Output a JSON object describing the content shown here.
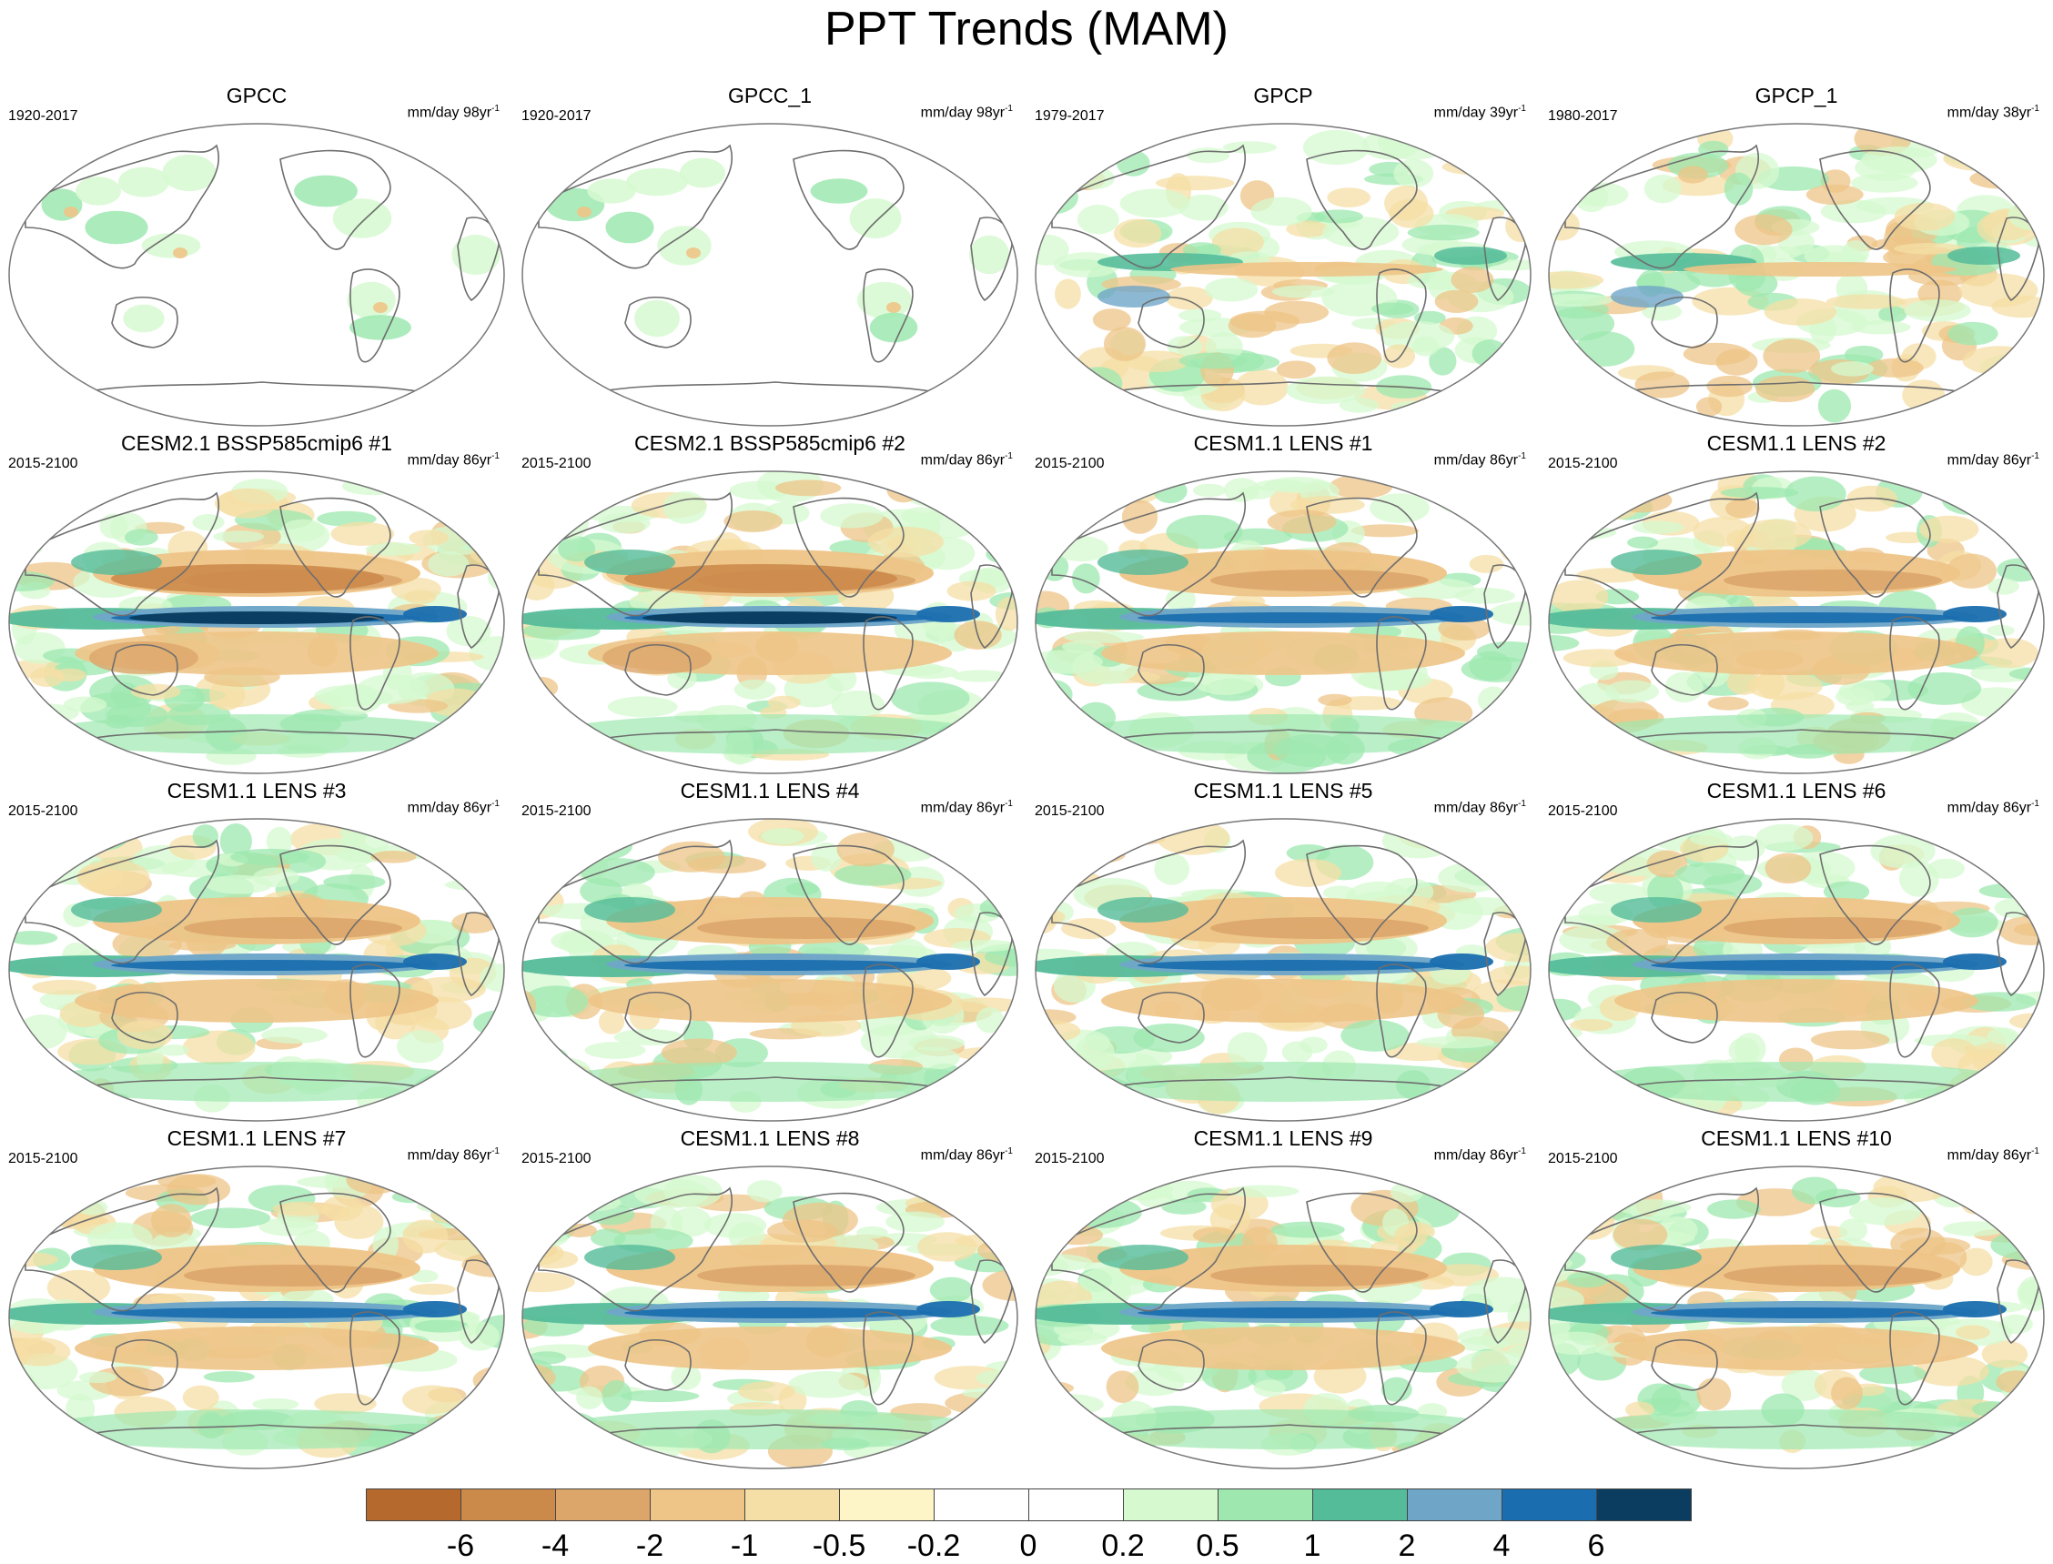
{
  "figure": {
    "title": "PPT Trends (MAM)"
  },
  "panels": [
    {
      "title": "GPCC",
      "period": "1920-2017",
      "units": "mm/day 98yr",
      "units_exp": "-1",
      "pattern": "land"
    },
    {
      "title": "GPCC_1",
      "period": "1920-2017",
      "units": "mm/day 98yr",
      "units_exp": "-1",
      "pattern": "land"
    },
    {
      "title": "GPCP",
      "period": "1979-2017",
      "units": "mm/day 39yr",
      "units_exp": "-1",
      "pattern": "obs"
    },
    {
      "title": "GPCP_1",
      "period": "1980-2017",
      "units": "mm/day 38yr",
      "units_exp": "-1",
      "pattern": "obs"
    },
    {
      "title": "CESM2.1 BSSP585cmip6 #1",
      "period": "2015-2100",
      "units": "mm/day 86yr",
      "units_exp": "-1",
      "pattern": "strong"
    },
    {
      "title": "CESM2.1 BSSP585cmip6 #2",
      "period": "2015-2100",
      "units": "mm/day 86yr",
      "units_exp": "-1",
      "pattern": "strong"
    },
    {
      "title": "CESM1.1 LENS #1",
      "period": "2015-2100",
      "units": "mm/day 86yr",
      "units_exp": "-1",
      "pattern": "model"
    },
    {
      "title": "CESM1.1 LENS #2",
      "period": "2015-2100",
      "units": "mm/day 86yr",
      "units_exp": "-1",
      "pattern": "model"
    },
    {
      "title": "CESM1.1 LENS #3",
      "period": "2015-2100",
      "units": "mm/day 86yr",
      "units_exp": "-1",
      "pattern": "model"
    },
    {
      "title": "CESM1.1 LENS #4",
      "period": "2015-2100",
      "units": "mm/day 86yr",
      "units_exp": "-1",
      "pattern": "model"
    },
    {
      "title": "CESM1.1 LENS #5",
      "period": "2015-2100",
      "units": "mm/day 86yr",
      "units_exp": "-1",
      "pattern": "model"
    },
    {
      "title": "CESM1.1 LENS #6",
      "period": "2015-2100",
      "units": "mm/day 86yr",
      "units_exp": "-1",
      "pattern": "model"
    },
    {
      "title": "CESM1.1 LENS #7",
      "period": "2015-2100",
      "units": "mm/day 86yr",
      "units_exp": "-1",
      "pattern": "model"
    },
    {
      "title": "CESM1.1 LENS #8",
      "period": "2015-2100",
      "units": "mm/day 86yr",
      "units_exp": "-1",
      "pattern": "model"
    },
    {
      "title": "CESM1.1 LENS #9",
      "period": "2015-2100",
      "units": "mm/day 86yr",
      "units_exp": "-1",
      "pattern": "model"
    },
    {
      "title": "CESM1.1 LENS #10",
      "period": "2015-2100",
      "units": "mm/day 86yr",
      "units_exp": "-1",
      "pattern": "model"
    }
  ],
  "colorbar": {
    "colors": [
      "#b5692c",
      "#cc8a4a",
      "#dca56a",
      "#eec487",
      "#f6dfa6",
      "#fdf5c8",
      "#ffffff",
      "#ffffff",
      "#d6f9d0",
      "#9ee8b0",
      "#55bc9a",
      "#6fa6c8",
      "#1a6eaf",
      "#0b3d61"
    ],
    "tick_labels": [
      "-6",
      "-4",
      "-2",
      "-1",
      "-0.5",
      "-0.2",
      "0",
      "0.2",
      "0.5",
      "1",
      "2",
      "4",
      "6"
    ]
  },
  "colors": {
    "map_outline": "#777777",
    "coast": "#6e6e6e"
  }
}
